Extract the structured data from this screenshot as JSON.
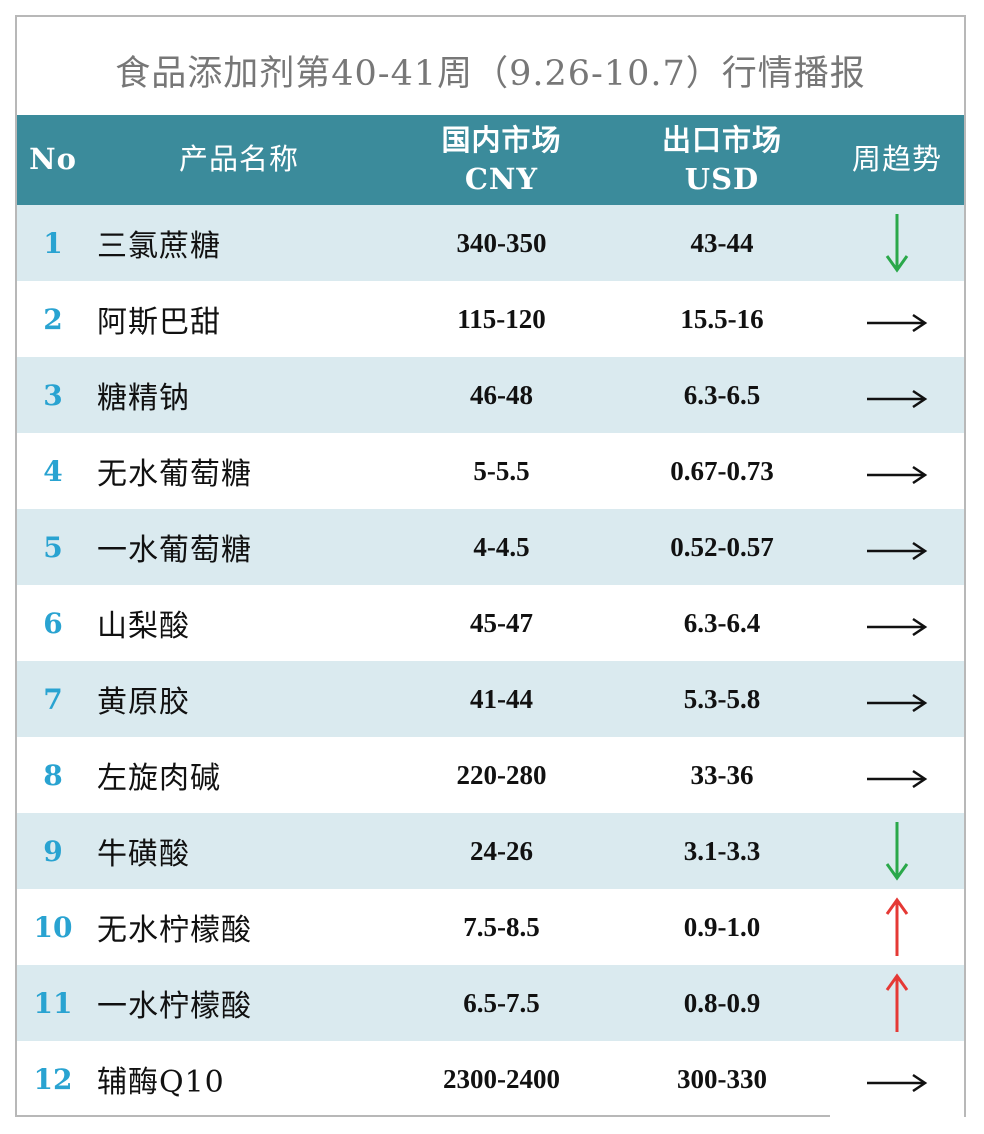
{
  "title": "食品添加剂第40-41周（9.26-10.7）行情播报",
  "columns": {
    "no": "No",
    "name": "产品名称",
    "domestic_line1": "国内市场",
    "domestic_line2": "CNY",
    "export_line1": "出口市场",
    "export_line2": "USD",
    "trend": "周趋势"
  },
  "rows": [
    {
      "no": "1",
      "name": "三氯蔗糖",
      "cny": "340-350",
      "usd": "43-44",
      "trend": "down"
    },
    {
      "no": "2",
      "name": "阿斯巴甜",
      "cny": "115-120",
      "usd": "15.5-16",
      "trend": "flat"
    },
    {
      "no": "3",
      "name": "糖精钠",
      "cny": "46-48",
      "usd": "6.3-6.5",
      "trend": "flat"
    },
    {
      "no": "4",
      "name": "无水葡萄糖",
      "cny": "5-5.5",
      "usd": "0.67-0.73",
      "trend": "flat"
    },
    {
      "no": "5",
      "name": "一水葡萄糖",
      "cny": "4-4.5",
      "usd": "0.52-0.57",
      "trend": "flat"
    },
    {
      "no": "6",
      "name": "山梨酸",
      "cny": "45-47",
      "usd": "6.3-6.4",
      "trend": "flat"
    },
    {
      "no": "7",
      "name": "黄原胶",
      "cny": "41-44",
      "usd": "5.3-5.8",
      "trend": "flat"
    },
    {
      "no": "8",
      "name": "左旋肉碱",
      "cny": "220-280",
      "usd": "33-36",
      "trend": "flat"
    },
    {
      "no": "9",
      "name": "牛磺酸",
      "cny": "24-26",
      "usd": "3.1-3.3",
      "trend": "down"
    },
    {
      "no": "10",
      "name": "无水柠檬酸",
      "cny": "7.5-8.5",
      "usd": "0.9-1.0",
      "trend": "up"
    },
    {
      "no": "11",
      "name": "一水柠檬酸",
      "cny": "6.5-7.5",
      "usd": "0.8-0.9",
      "trend": "up"
    },
    {
      "no": "12",
      "name": "辅酶Q10",
      "cny": "2300-2400",
      "usd": "300-330",
      "trend": "flat"
    }
  ],
  "colors": {
    "header_bg": "#3b8b9b",
    "row_shade": "#daeaef",
    "number": "#29a3d1",
    "arrow_down": "#2aa84a",
    "arrow_up": "#e53935",
    "arrow_flat": "#111111"
  }
}
